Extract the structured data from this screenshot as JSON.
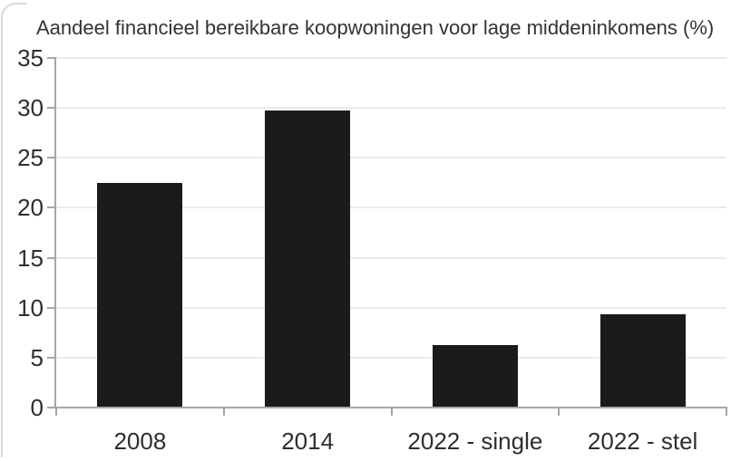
{
  "page": {
    "background_color": "#ffffff",
    "corner_border_color": "#d9d9d9"
  },
  "chart_data": {
    "type": "bar",
    "title": "Aandeel financieel bereikbare koopwoningen voor lage middeninkomens (%)",
    "categories": [
      "2008",
      "2014",
      "2022 - single",
      "2022 - stel"
    ],
    "values": [
      22.5,
      29.7,
      6.3,
      9.3
    ],
    "xlabel": "",
    "ylabel": "",
    "ylim": [
      0,
      35
    ],
    "yticks": [
      0,
      5,
      10,
      15,
      20,
      25,
      30,
      35
    ],
    "grid": "horizontal",
    "legend": "none",
    "bar_color": "#1b1b1b",
    "grid_color": "#eaeaea",
    "axis_color": "#a6a6a6",
    "text_color": "#2e2e2e",
    "title_color": "#333333"
  }
}
